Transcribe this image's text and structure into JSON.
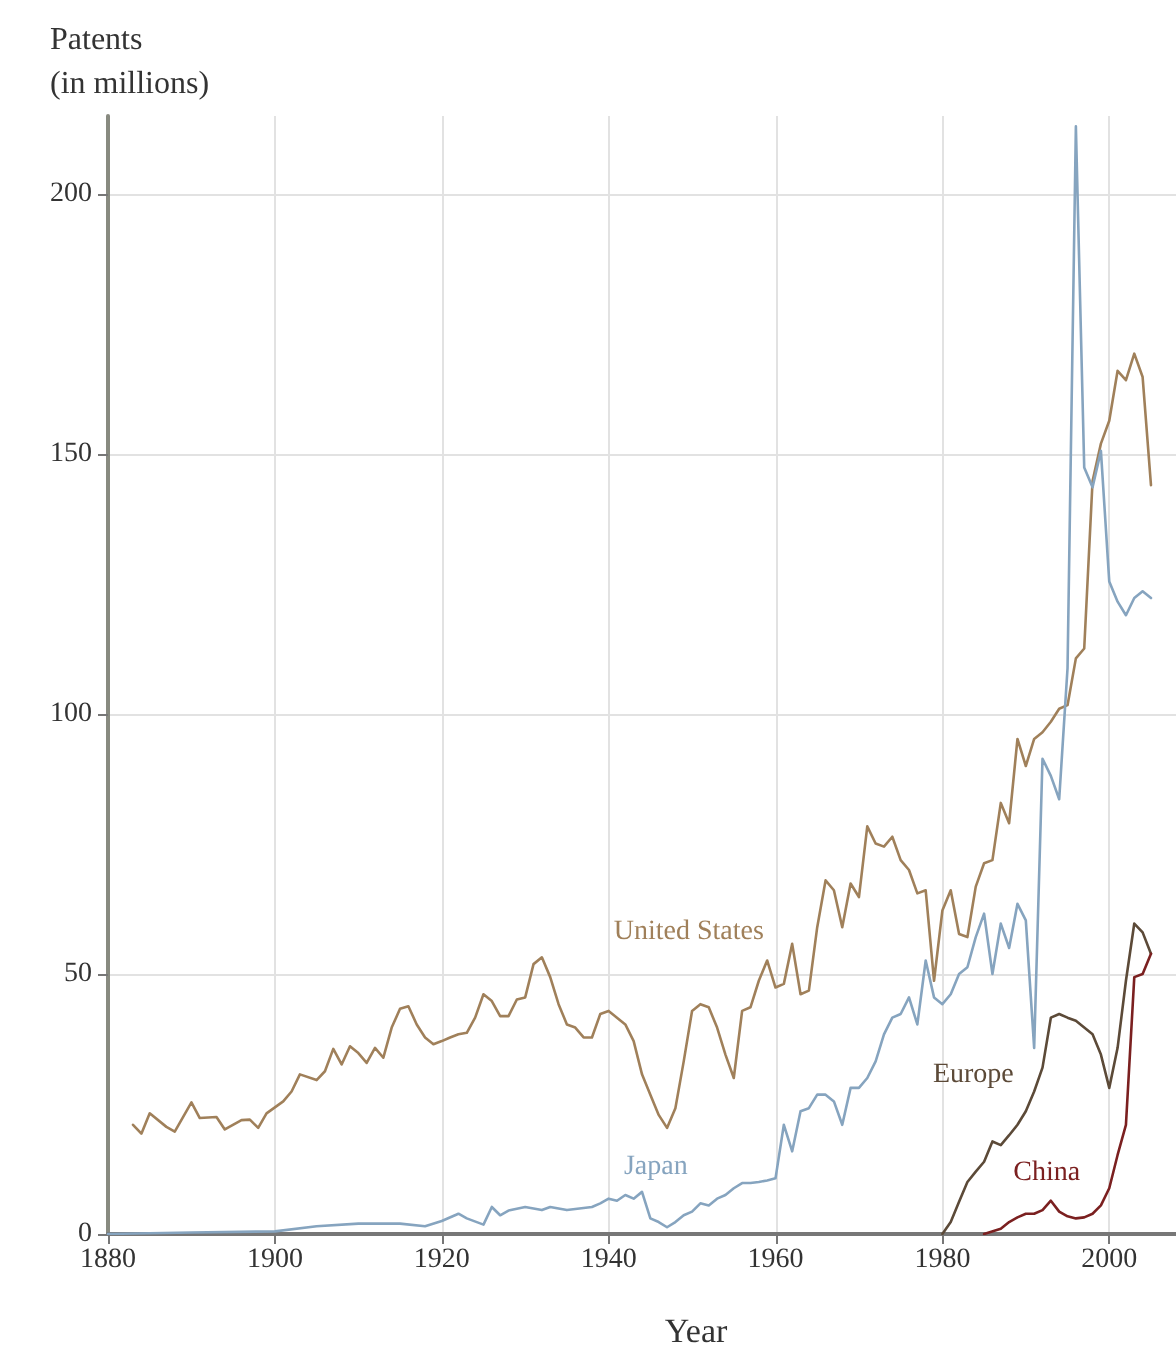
{
  "chart_data": {
    "type": "line",
    "ylabel": "Patents\n(in millions)",
    "xlabel": "Year",
    "xlim": [
      1880,
      2008
    ],
    "xticks": [
      1880,
      1900,
      1920,
      1940,
      1960,
      1980,
      2000
    ],
    "ylim": [
      0,
      215
    ],
    "yticks": [
      0,
      50,
      100,
      150,
      200
    ],
    "grid": true,
    "legend": false,
    "marker": "none",
    "line_style": "solid",
    "series": [
      {
        "name": "United States",
        "color": "#a0805a",
        "x": [
          1883,
          1884,
          1885,
          1887,
          1888,
          1890,
          1891,
          1893,
          1894,
          1896,
          1897,
          1898,
          1899,
          1901,
          1902,
          1903,
          1905,
          1906,
          1907,
          1908,
          1909,
          1910,
          1911,
          1912,
          1913,
          1914,
          1915,
          1916,
          1917,
          1918,
          1919,
          1920,
          1921,
          1922,
          1923,
          1924,
          1925,
          1926,
          1927,
          1928,
          1929,
          1930,
          1931,
          1932,
          1933,
          1934,
          1935,
          1936,
          1937,
          1938,
          1939,
          1940,
          1941,
          1942,
          1943,
          1944,
          1945,
          1946,
          1947,
          1948,
          1949,
          1950,
          1951,
          1952,
          1953,
          1954,
          1955,
          1956,
          1957,
          1958,
          1959,
          1960,
          1961,
          1962,
          1963,
          1964,
          1965,
          1966,
          1967,
          1968,
          1969,
          1970,
          1971,
          1972,
          1973,
          1974,
          1975,
          1976,
          1977,
          1978,
          1979,
          1980,
          1981,
          1982,
          1983,
          1984,
          1985,
          1986,
          1987,
          1988,
          1989,
          1990,
          1991,
          1992,
          1993,
          1994,
          1995,
          1996,
          1997,
          1998,
          1999,
          2000,
          2001,
          2002,
          2003,
          2004,
          2005
        ],
        "values": [
          21,
          19.3,
          23.2,
          20.6,
          19.7,
          25.3,
          22.3,
          22.5,
          20.1,
          21.9,
          22,
          20.4,
          23.2,
          25.5,
          27.4,
          30.7,
          29.6,
          31.3,
          35.6,
          32.6,
          36.1,
          34.8,
          32.9,
          35.8,
          33.9,
          39.7,
          43.3,
          43.8,
          40.3,
          37.8,
          36.5,
          37.1,
          37.8,
          38.4,
          38.7,
          41.6,
          46.1,
          44.8,
          41.9,
          41.9,
          45.1,
          45.5,
          51.9,
          53.2,
          49.4,
          44.2,
          40.3,
          39.7,
          37.8,
          37.8,
          42.3,
          42.9,
          41.6,
          40.3,
          37.1,
          30.7,
          26.8,
          22.9,
          20.4,
          24.2,
          33.2,
          42.9,
          44.2,
          43.6,
          39.7,
          34.5,
          30,
          42.9,
          43.6,
          48.7,
          52.6,
          47.4,
          48.1,
          55.8,
          46.1,
          46.8,
          59,
          68,
          66.1,
          59,
          67.4,
          64.8,
          78.4,
          75.1,
          74.5,
          76.4,
          71.9,
          70,
          65.5,
          66.1,
          48.7,
          62.2,
          66.1,
          57.7,
          57.1,
          66.8,
          71.3,
          71.9,
          82.9,
          79,
          95.2,
          90,
          95.2,
          96.5,
          98.5,
          101,
          101.7,
          110.7,
          112.6,
          144.8,
          152,
          156.4,
          166,
          164.2,
          169.3,
          164.8,
          144
        ]
      },
      {
        "name": "Japan",
        "color": "#86a4bf",
        "x": [
          1880,
          1890,
          1900,
          1905,
          1910,
          1915,
          1918,
          1920,
          1922,
          1923,
          1925,
          1926,
          1927,
          1928,
          1930,
          1932,
          1933,
          1935,
          1938,
          1939,
          1940,
          1941,
          1942,
          1943,
          1944,
          1945,
          1946,
          1947,
          1948,
          1949,
          1950,
          1951,
          1952,
          1953,
          1954,
          1955,
          1956,
          1957,
          1958,
          1959,
          1960,
          1961,
          1962,
          1963,
          1964,
          1965,
          1966,
          1967,
          1968,
          1969,
          1970,
          1971,
          1972,
          1973,
          1974,
          1975,
          1976,
          1977,
          1978,
          1979,
          1980,
          1981,
          1982,
          1983,
          1984,
          1985,
          1986,
          1987,
          1988,
          1989,
          1990,
          1991,
          1992,
          1993,
          1994,
          1995,
          1996,
          1997,
          1998,
          1999,
          2000,
          2001,
          2002,
          2003,
          2004,
          2005
        ],
        "values": [
          0,
          0.3,
          0.5,
          1.5,
          2,
          2,
          1.5,
          2.5,
          3.9,
          3,
          1.8,
          5.2,
          3.6,
          4.5,
          5.2,
          4.6,
          5.2,
          4.6,
          5.2,
          5.9,
          6.8,
          6.4,
          7.5,
          6.8,
          8.1,
          3,
          2.3,
          1.3,
          2.3,
          3.6,
          4.3,
          5.9,
          5.5,
          6.8,
          7.5,
          8.8,
          9.8,
          9.8,
          10,
          10.3,
          10.7,
          21,
          15.9,
          23.6,
          24.2,
          26.8,
          26.8,
          25.5,
          21,
          28.1,
          28.1,
          30,
          33.2,
          38.4,
          41.6,
          42.3,
          45.5,
          40.3,
          52.6,
          45.5,
          44.2,
          46.1,
          50,
          51.3,
          57.1,
          61.6,
          50,
          59.7,
          55,
          63.5,
          60.3,
          35.8,
          91.4,
          88.1,
          83.6,
          108.8,
          213,
          147.4,
          143.6,
          150.6,
          125.5,
          121.6,
          119,
          122.3,
          123.6,
          122.3
        ]
      },
      {
        "name": "Europe",
        "color": "#5c4a38",
        "x": [
          1980,
          1981,
          1982,
          1983,
          1984,
          1985,
          1986,
          1987,
          1988,
          1989,
          1990,
          1991,
          1992,
          1993,
          1994,
          1995,
          1996,
          1997,
          1998,
          1999,
          2000,
          2001,
          2002,
          2003,
          2004,
          2005
        ],
        "values": [
          0,
          2.3,
          6.2,
          10,
          12,
          13.9,
          17.8,
          17.1,
          19,
          21,
          23.6,
          27.4,
          32,
          41.6,
          42.3,
          41.6,
          41,
          39.7,
          38.4,
          34.5,
          28.1,
          35.8,
          48.7,
          59.7,
          58,
          53.9
        ]
      },
      {
        "name": "China",
        "color": "#7b2020",
        "x": [
          1985,
          1987,
          1988,
          1989,
          1990,
          1991,
          1992,
          1993,
          1994,
          1995,
          1996,
          1997,
          1998,
          1999,
          2000,
          2001,
          2002,
          2003,
          2004,
          2005
        ],
        "values": [
          0,
          1,
          2.3,
          3.2,
          3.9,
          3.9,
          4.6,
          6.4,
          4.3,
          3.4,
          3,
          3.2,
          3.9,
          5.5,
          8.8,
          15.2,
          21,
          49.4,
          50,
          53.9
        ]
      }
    ]
  }
}
